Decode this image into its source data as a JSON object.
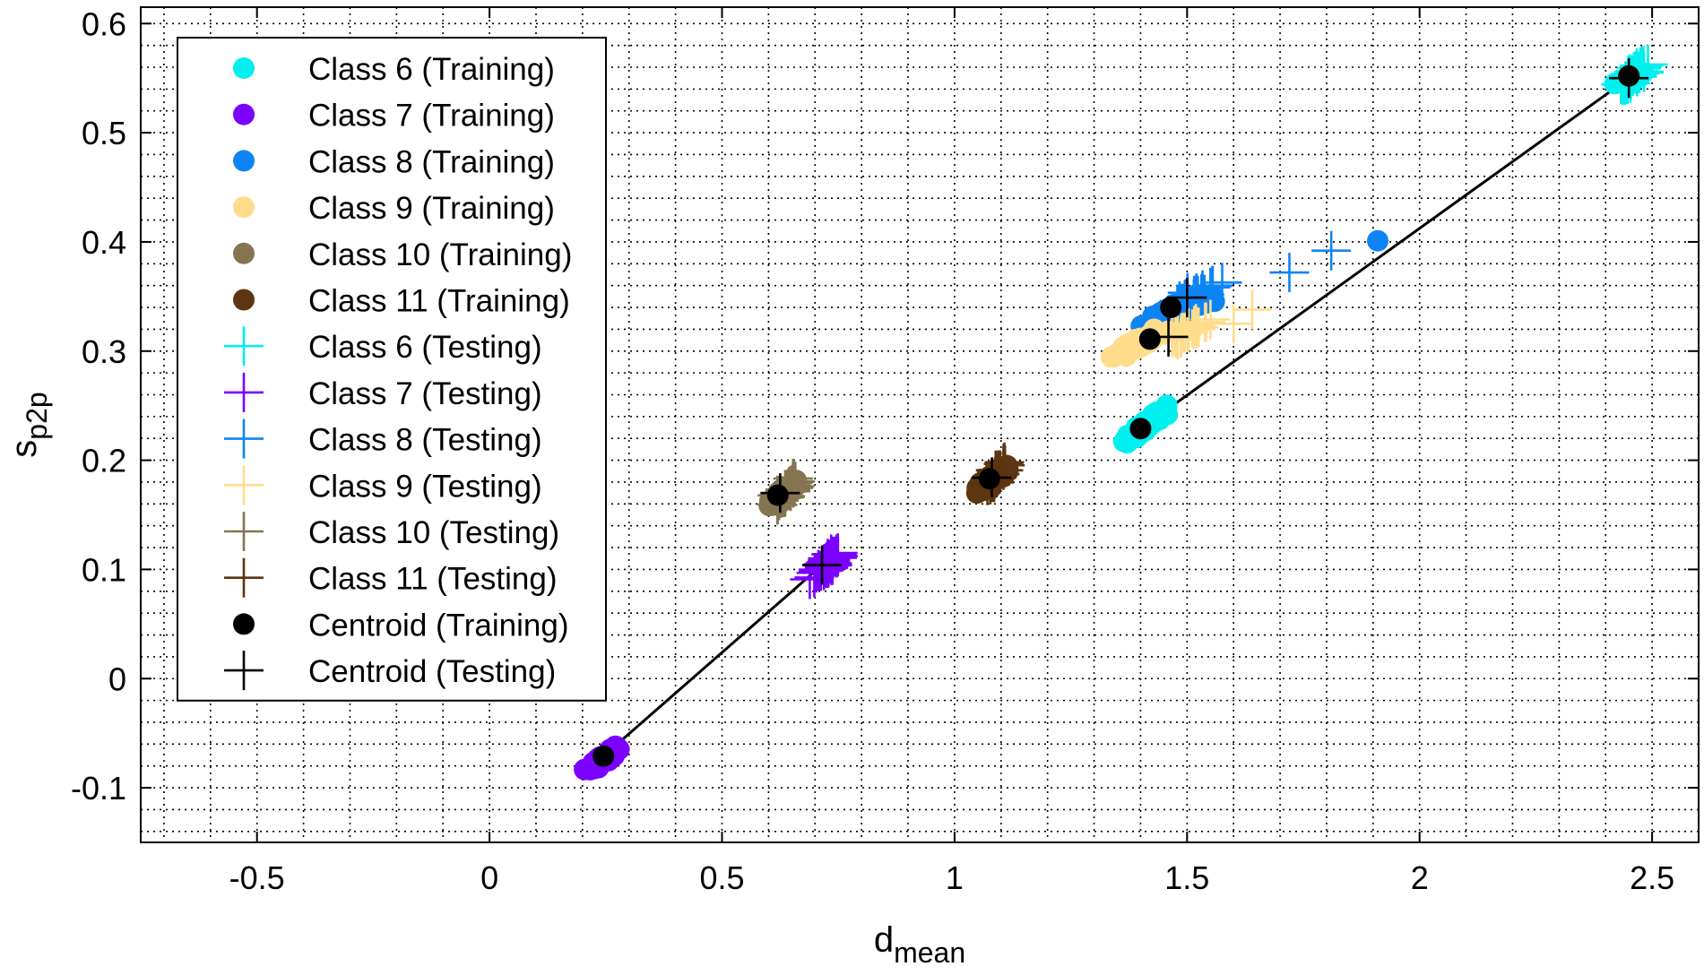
{
  "chart_data": {
    "type": "scatter",
    "title": "",
    "xlabel": {
      "main": "d",
      "sub": "mean"
    },
    "ylabel": {
      "main": "s",
      "sub": "p2p"
    },
    "xlim": [
      -0.75,
      2.6
    ],
    "ylim": [
      -0.15,
      0.615
    ],
    "xticks": [
      -0.5,
      0,
      0.5,
      1,
      1.5,
      2,
      2.5
    ],
    "xtick_labels": [
      "-0.5",
      "0",
      "0.5",
      "1",
      "1.5",
      "2",
      "2.5"
    ],
    "yticks": [
      -0.1,
      0,
      0.1,
      0.2,
      0.3,
      0.4,
      0.5,
      0.6
    ],
    "ytick_labels": [
      "-0.1",
      "0",
      "0.1",
      "0.2",
      "0.3",
      "0.4",
      "0.5",
      "0.6"
    ],
    "grid": true,
    "minor_grid": true,
    "legend_position": "top-left",
    "series": [
      {
        "name": "Class 6 (Training)",
        "kind": "training",
        "color": "#00f0f0",
        "cluster": {
          "cx": 1.41,
          "cy": 0.232,
          "dx": 0.06,
          "dy": 0.011,
          "n": 70
        },
        "points": [
          [
            2.45,
            0.55
          ],
          [
            2.42,
            0.545
          ],
          [
            2.48,
            0.555
          ]
        ]
      },
      {
        "name": "Class 7 (Training)",
        "kind": "training",
        "color": "#7b00ff",
        "cluster": {
          "cx": 0.245,
          "cy": -0.073,
          "dx": 0.04,
          "dy": 0.008,
          "n": 60
        },
        "points": []
      },
      {
        "name": "Class 8 (Training)",
        "kind": "training",
        "color": "#0d84f5",
        "cluster": {
          "cx": 1.5,
          "cy": 0.342,
          "dx": 0.11,
          "dy": 0.012,
          "n": 90
        },
        "points": [
          [
            1.91,
            0.401
          ]
        ]
      },
      {
        "name": "Class 9 (Training)",
        "kind": "training",
        "color": "#ffdc8c",
        "cluster": {
          "cx": 1.4,
          "cy": 0.308,
          "dx": 0.08,
          "dy": 0.01,
          "n": 80
        },
        "points": []
      },
      {
        "name": "Class 10 (Training)",
        "kind": "training",
        "color": "#847550",
        "cluster": {
          "cx": 0.63,
          "cy": 0.168,
          "dx": 0.04,
          "dy": 0.01,
          "n": 60
        },
        "points": []
      },
      {
        "name": "Class 11 (Training)",
        "kind": "training",
        "color": "#5d3510",
        "cluster": {
          "cx": 1.08,
          "cy": 0.183,
          "dx": 0.045,
          "dy": 0.009,
          "n": 60
        },
        "points": []
      },
      {
        "name": "Class 6 (Testing)",
        "kind": "testing",
        "color": "#00f0f0",
        "cluster": {
          "cx": 2.46,
          "cy": 0.552,
          "dx": 0.04,
          "dy": 0.01,
          "n": 45
        },
        "points": []
      },
      {
        "name": "Class 7 (Testing)",
        "kind": "testing",
        "color": "#7b00ff",
        "cluster": {
          "cx": 0.725,
          "cy": 0.104,
          "dx": 0.04,
          "dy": 0.01,
          "n": 45
        },
        "points": []
      },
      {
        "name": "Class 8 (Testing)",
        "kind": "testing",
        "color": "#0d84f5",
        "cluster": {
          "cx": 1.52,
          "cy": 0.352,
          "dx": 0.06,
          "dy": 0.009,
          "n": 25
        },
        "points": [
          [
            1.72,
            0.372
          ],
          [
            1.81,
            0.392
          ]
        ]
      },
      {
        "name": "Class 9 (Testing)",
        "kind": "testing",
        "color": "#ffdc8c",
        "cluster": {
          "cx": 1.5,
          "cy": 0.318,
          "dx": 0.07,
          "dy": 0.01,
          "n": 30
        },
        "points": [
          [
            1.64,
            0.338
          ],
          [
            1.6,
            0.325
          ]
        ]
      },
      {
        "name": "Class 10 (Testing)",
        "kind": "testing",
        "color": "#847550",
        "cluster": {
          "cx": 0.64,
          "cy": 0.172,
          "dx": 0.03,
          "dy": 0.01,
          "n": 30
        },
        "points": []
      },
      {
        "name": "Class 11 (Testing)",
        "kind": "testing",
        "color": "#5d3510",
        "cluster": {
          "cx": 1.09,
          "cy": 0.186,
          "dx": 0.03,
          "dy": 0.01,
          "n": 30
        },
        "points": []
      },
      {
        "name": "Centroid (Training)",
        "kind": "centroid-training",
        "color": "#000000",
        "points": [
          [
            1.4,
            0.229
          ],
          [
            0.245,
            -0.071
          ],
          [
            1.465,
            0.34
          ],
          [
            1.42,
            0.311
          ],
          [
            0.62,
            0.168
          ],
          [
            1.075,
            0.183
          ],
          [
            2.45,
            0.552
          ]
        ]
      },
      {
        "name": "Centroid (Testing)",
        "kind": "centroid-testing",
        "color": "#000000",
        "points": [
          [
            2.45,
            0.55
          ],
          [
            0.715,
            0.104
          ],
          [
            1.5,
            0.349
          ],
          [
            1.46,
            0.313
          ],
          [
            0.625,
            0.17
          ],
          [
            1.08,
            0.184
          ]
        ]
      }
    ],
    "lines": [
      {
        "from": [
          0.245,
          -0.071
        ],
        "to": [
          0.715,
          0.104
        ],
        "color": "#000000"
      },
      {
        "from": [
          1.4,
          0.229
        ],
        "to": [
          2.45,
          0.55
        ],
        "color": "#000000"
      }
    ]
  }
}
